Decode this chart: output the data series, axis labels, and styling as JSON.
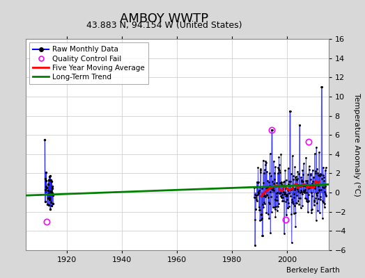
{
  "title": "AMBOY WWTP",
  "subtitle": "43.883 N, 94.154 W (United States)",
  "ylabel": "Temperature Anomaly (°C)",
  "attribution": "Berkeley Earth",
  "xlim": [
    1905,
    2015
  ],
  "ylim": [
    -6,
    16
  ],
  "yticks": [
    -6,
    -4,
    -2,
    0,
    2,
    4,
    6,
    8,
    10,
    12,
    14,
    16
  ],
  "xticks": [
    1920,
    1940,
    1960,
    1980,
    2000
  ],
  "bg_color": "#d8d8d8",
  "plot_bg_color": "#ffffff",
  "grid_color": "#cccccc",
  "trend_x": [
    1905,
    2015
  ],
  "trend_y": [
    -0.3,
    0.85
  ],
  "title_fontsize": 13,
  "subtitle_fontsize": 9,
  "tick_fontsize": 8,
  "ylabel_fontsize": 8,
  "legend_fontsize": 7.5
}
